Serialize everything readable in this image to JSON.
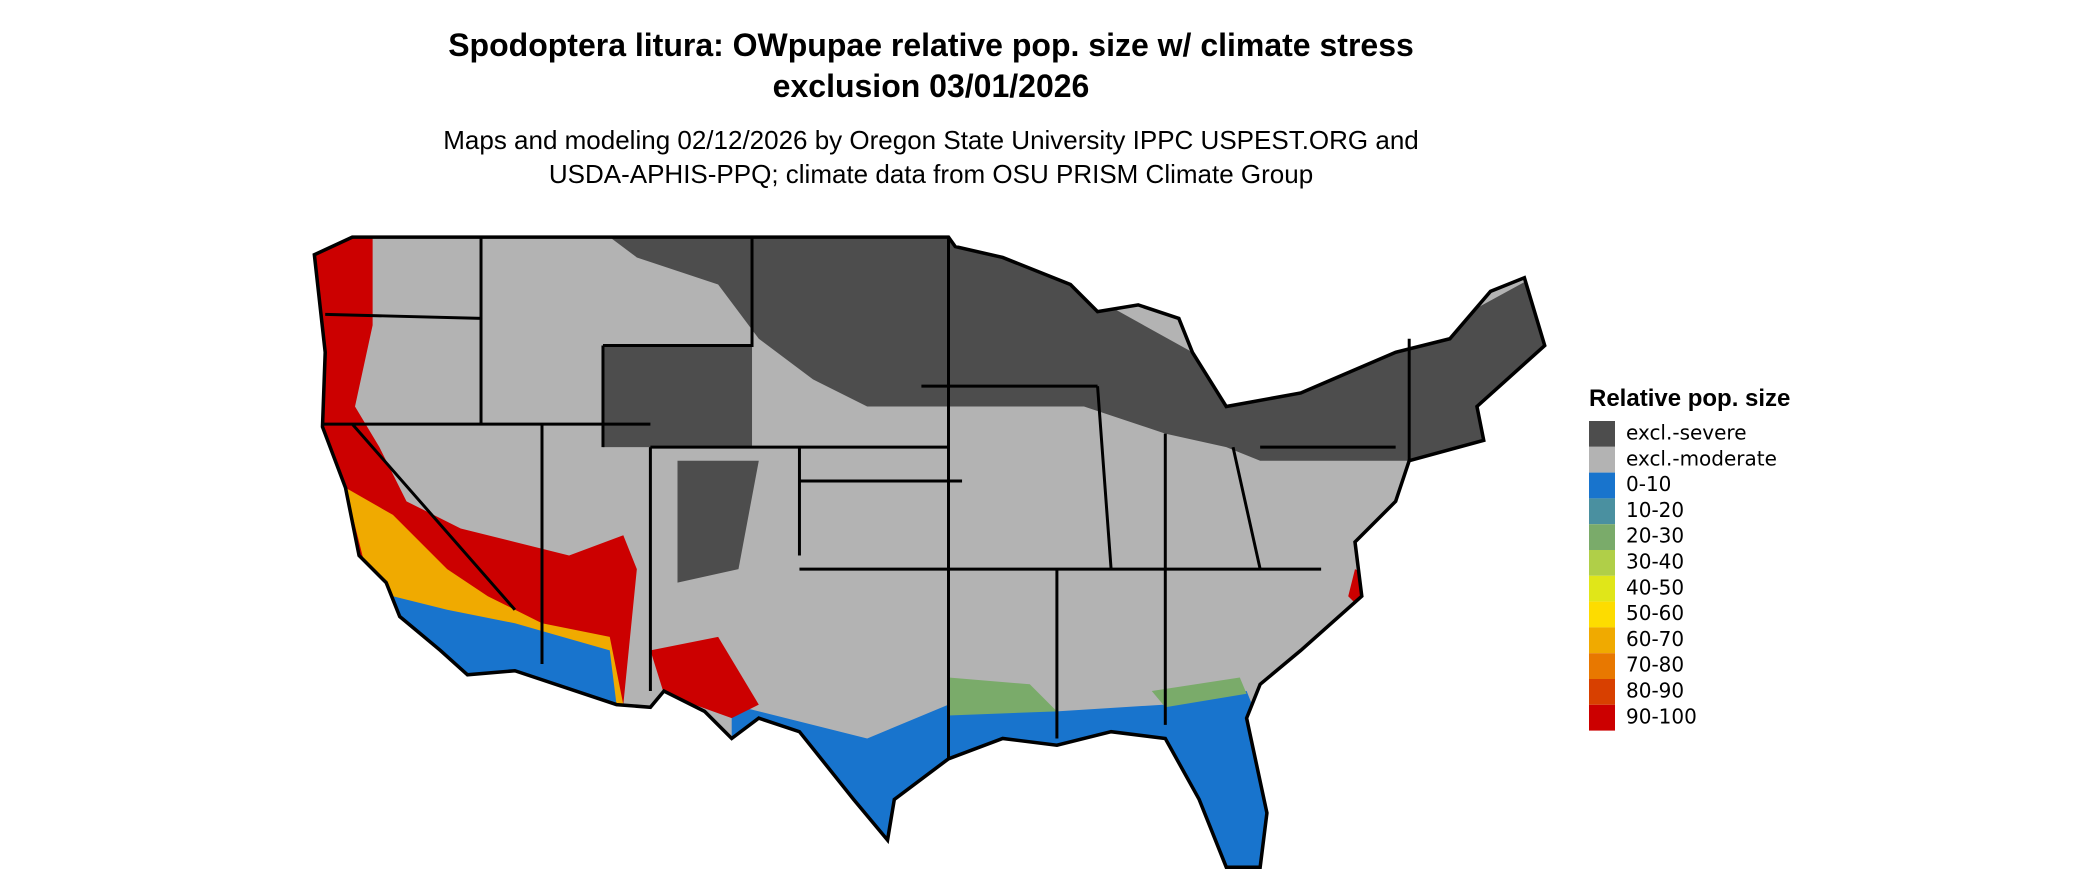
{
  "map": {
    "title_lines": [
      "Spodoptera litura: OWpupae relative pop. size w/ climate stress",
      "exclusion 03/01/2026"
    ],
    "subtitle_lines": [
      "Maps and modeling 02/12/2026 by Oregon State University IPPC USPEST.ORG and",
      "USDA-APHIS-PPQ; climate data from OSU PRISM Climate Group"
    ],
    "legend": {
      "title": "Relative pop. size",
      "items": [
        {
          "label": "excl.-severe",
          "color": "#4d4d4d"
        },
        {
          "label": "excl.-moderate",
          "color": "#b3b3b3"
        },
        {
          "label": "0-10",
          "color": "#1874cd"
        },
        {
          "label": "10-20",
          "color": "#4a90a0"
        },
        {
          "label": "20-30",
          "color": "#7aab6a"
        },
        {
          "label": "30-40",
          "color": "#b0cf48"
        },
        {
          "label": "40-50",
          "color": "#e0e619"
        },
        {
          "label": "50-60",
          "color": "#fddc00"
        },
        {
          "label": "60-70",
          "color": "#f0aa00"
        },
        {
          "label": "70-80",
          "color": "#e87800"
        },
        {
          "label": "80-90",
          "color": "#d84000"
        },
        {
          "label": "90-100",
          "color": "#cc0000"
        }
      ]
    }
  }
}
